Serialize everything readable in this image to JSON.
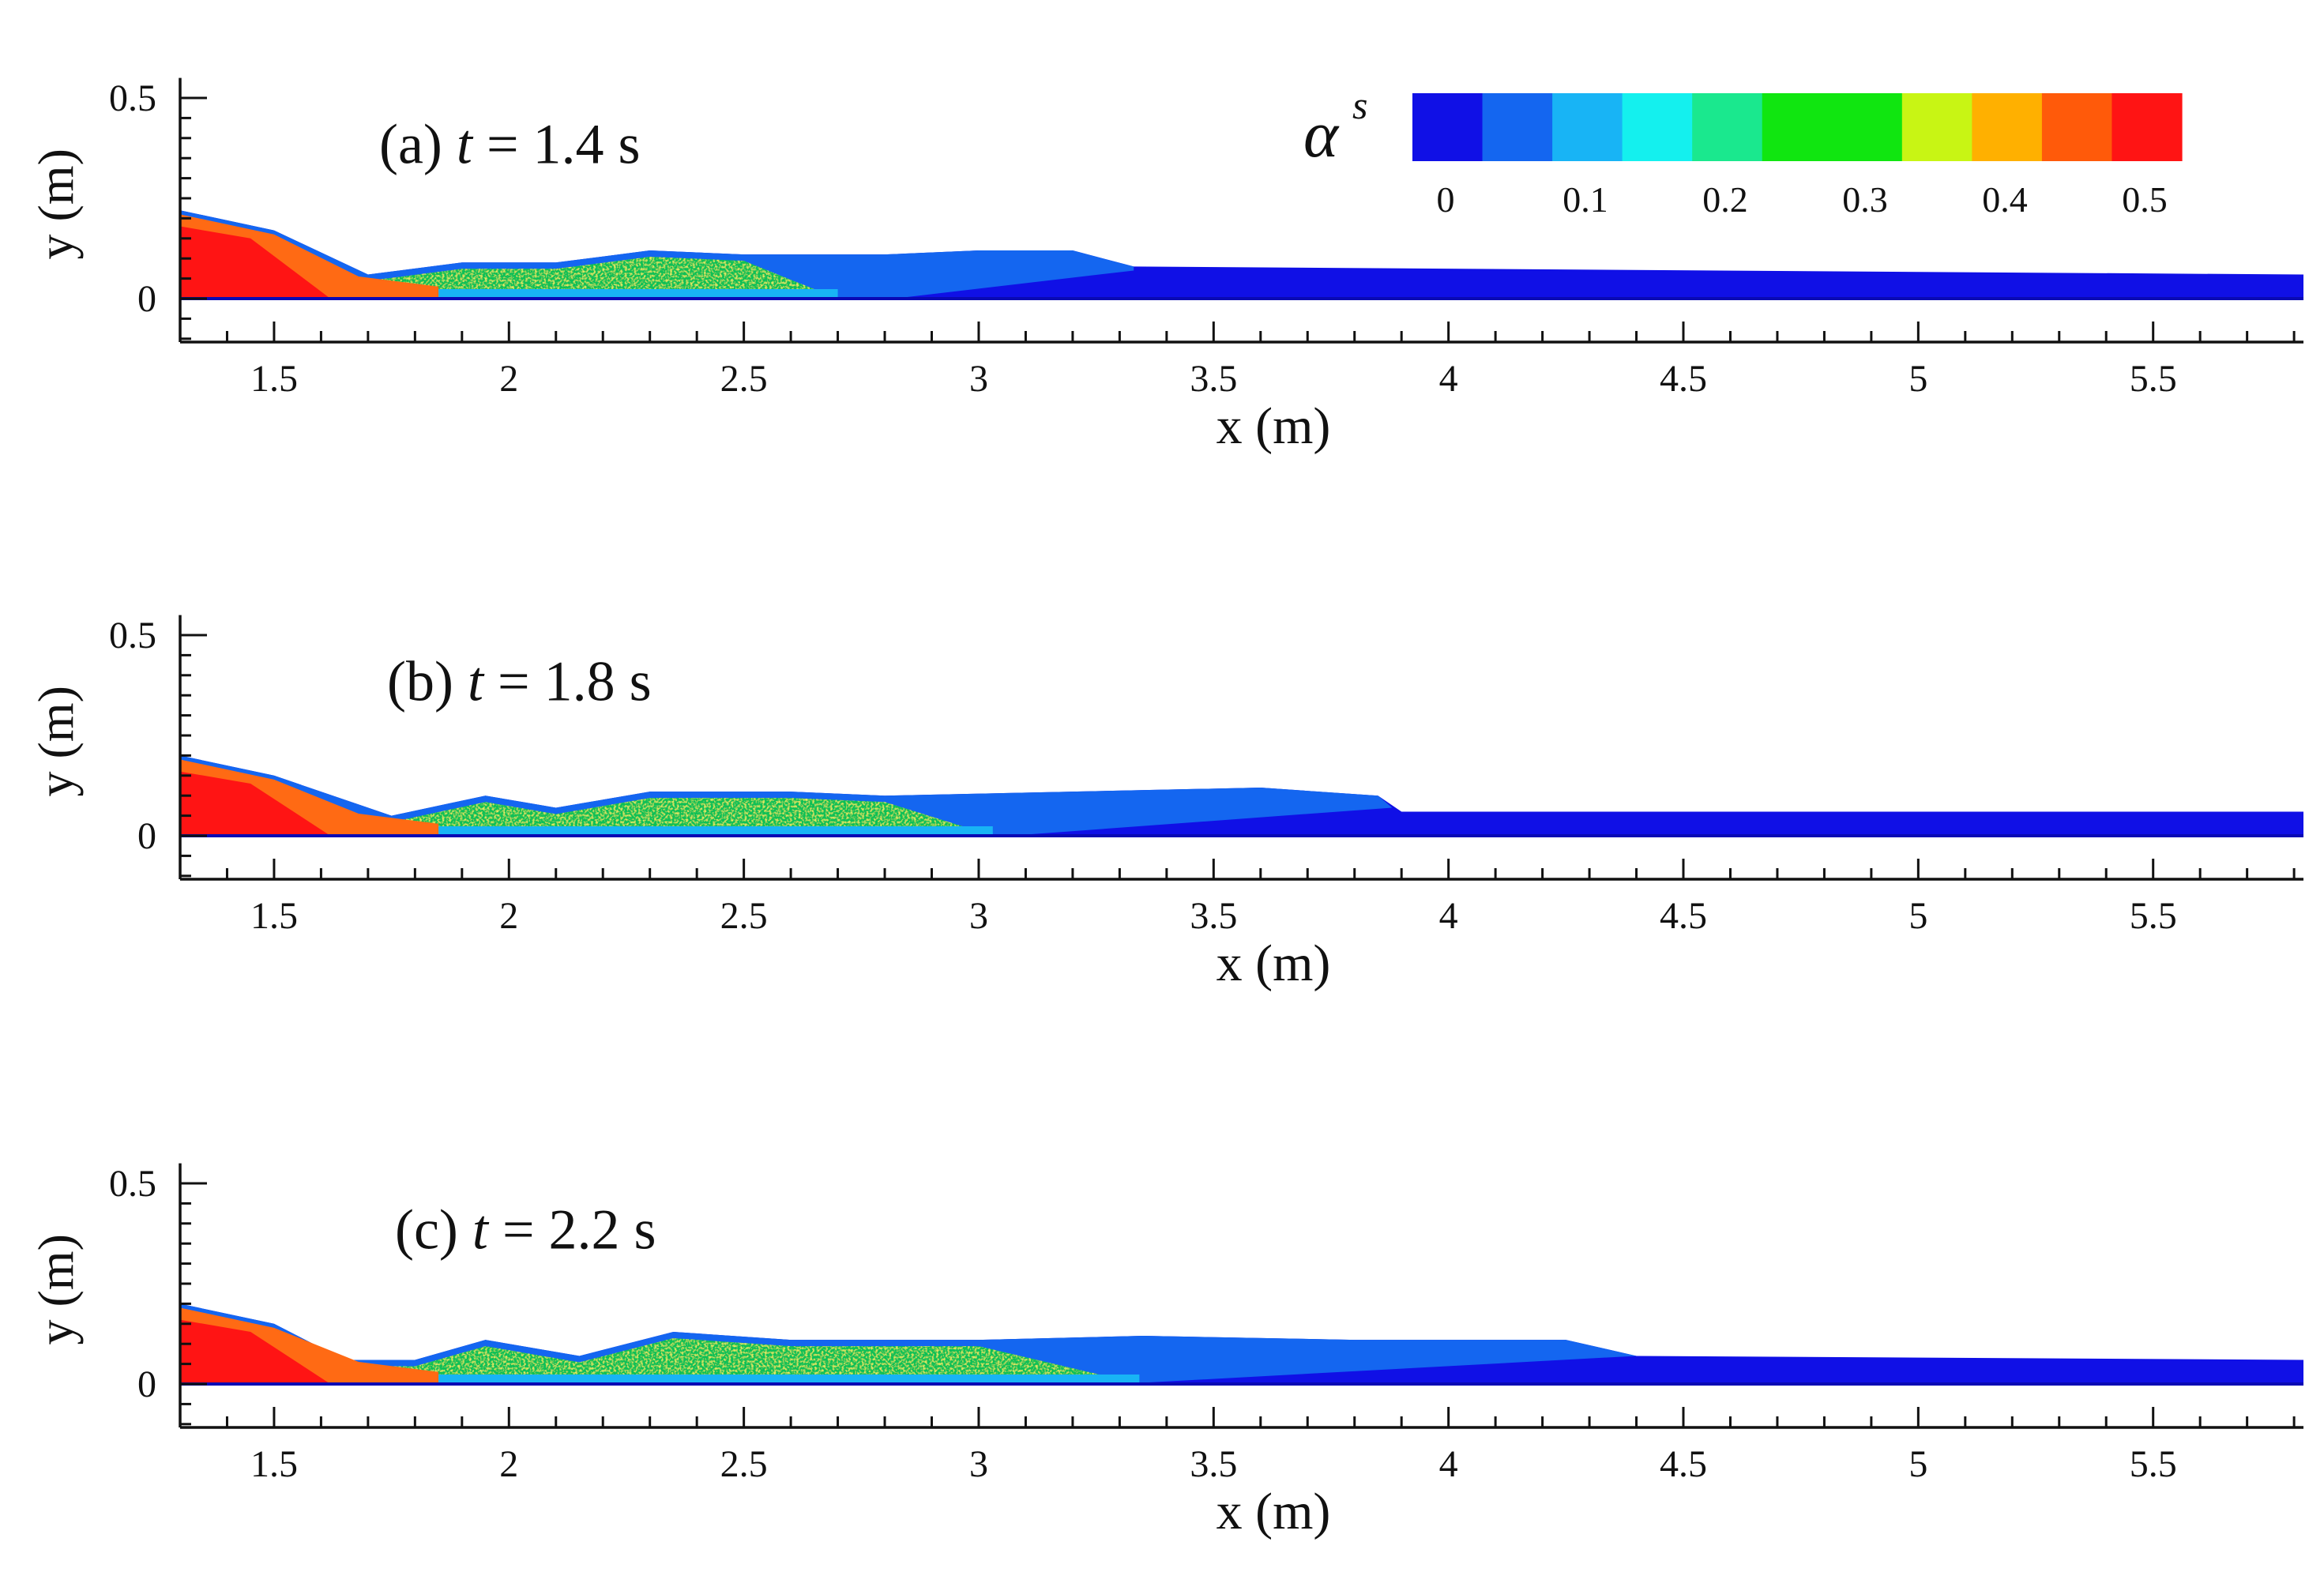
{
  "figure": {
    "colorbar": {
      "label_symbol": "α",
      "label_superscript": "s",
      "colors": [
        "#1010e6",
        "#1466f0",
        "#18b4f5",
        "#14f0ee",
        "#1ae88e",
        "#10e610",
        "#10e610",
        "#c8f514",
        "#ffb000",
        "#ff5a0a",
        "#ff1414"
      ],
      "tick_labels": [
        "0",
        "0.1",
        "0.2",
        "0.3",
        "0.4",
        "0.5"
      ],
      "tick_values": [
        0,
        0.1,
        0.2,
        0.3,
        0.4,
        0.5
      ]
    }
  },
  "chart_data": [
    {
      "type": "heatmap",
      "panel_label": "(a)",
      "time_label": "t",
      "time_value": "= 1.4 s",
      "xlabel": "x (m)",
      "ylabel": "y (m)",
      "xlim": [
        1.3,
        5.82
      ],
      "ylim": [
        -0.1,
        0.55
      ],
      "xticks": [
        "1.5",
        "2",
        "2.5",
        "3",
        "3.5",
        "4",
        "4.5",
        "5",
        "5.5"
      ],
      "xtick_values": [
        1.5,
        2,
        2.5,
        3,
        3.5,
        4,
        4.5,
        5,
        5.5
      ],
      "yticks": [
        "0",
        "0.5"
      ],
      "ytick_values": [
        0,
        0.5
      ],
      "front_x": 3.33,
      "surface_profile": [
        [
          1.3,
          0.22
        ],
        [
          1.5,
          0.17
        ],
        [
          1.7,
          0.06
        ],
        [
          1.9,
          0.09
        ],
        [
          2.1,
          0.09
        ],
        [
          2.3,
          0.12
        ],
        [
          2.5,
          0.11
        ],
        [
          2.8,
          0.11
        ],
        [
          3.0,
          0.12
        ],
        [
          3.2,
          0.12
        ],
        [
          3.33,
          0.08
        ],
        [
          5.82,
          0.06
        ]
      ]
    },
    {
      "type": "heatmap",
      "panel_label": "(b)",
      "time_label": "t",
      "time_value": "= 1.8 s",
      "xlabel": "x (m)",
      "ylabel": "y (m)",
      "xlim": [
        1.3,
        5.82
      ],
      "ylim": [
        -0.1,
        0.55
      ],
      "xticks": [
        "1.5",
        "2",
        "2.5",
        "3",
        "3.5",
        "4",
        "4.5",
        "5",
        "5.5"
      ],
      "xtick_values": [
        1.5,
        2,
        2.5,
        3,
        3.5,
        4,
        4.5,
        5,
        5.5
      ],
      "yticks": [
        "0",
        "0.5"
      ],
      "ytick_values": [
        0,
        0.5
      ],
      "front_x": 3.88,
      "surface_profile": [
        [
          1.3,
          0.2
        ],
        [
          1.5,
          0.15
        ],
        [
          1.75,
          0.05
        ],
        [
          1.95,
          0.1
        ],
        [
          2.1,
          0.07
        ],
        [
          2.3,
          0.11
        ],
        [
          2.6,
          0.11
        ],
        [
          2.8,
          0.1
        ],
        [
          3.2,
          0.11
        ],
        [
          3.6,
          0.12
        ],
        [
          3.85,
          0.1
        ],
        [
          3.9,
          0.06
        ],
        [
          5.82,
          0.06
        ]
      ]
    },
    {
      "type": "heatmap",
      "panel_label": "(c)",
      "time_label": "t",
      "time_value": "= 2.2 s",
      "xlabel": "x (m)",
      "ylabel": "y (m)",
      "xlim": [
        1.3,
        5.82
      ],
      "ylim": [
        -0.1,
        0.55
      ],
      "xticks": [
        "1.5",
        "2",
        "2.5",
        "3",
        "3.5",
        "4",
        "4.5",
        "5",
        "5.5"
      ],
      "xtick_values": [
        1.5,
        2,
        2.5,
        3,
        3.5,
        4,
        4.5,
        5,
        5.5
      ],
      "yticks": [
        "0",
        "0.5"
      ],
      "ytick_values": [
        0,
        0.5
      ],
      "front_x": 4.4,
      "surface_profile": [
        [
          1.3,
          0.2
        ],
        [
          1.5,
          0.15
        ],
        [
          1.65,
          0.06
        ],
        [
          1.8,
          0.06
        ],
        [
          1.95,
          0.11
        ],
        [
          2.15,
          0.07
        ],
        [
          2.35,
          0.13
        ],
        [
          2.6,
          0.11
        ],
        [
          3.0,
          0.11
        ],
        [
          3.35,
          0.12
        ],
        [
          3.8,
          0.11
        ],
        [
          4.25,
          0.11
        ],
        [
          4.4,
          0.07
        ],
        [
          5.82,
          0.06
        ]
      ]
    }
  ]
}
